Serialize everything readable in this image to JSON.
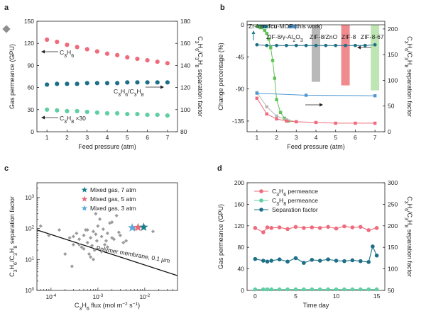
{
  "colors": {
    "pink": "#ef6b7b",
    "navy": "#1c6f86",
    "mint": "#5fcfa3",
    "green": "#5fc255",
    "blue": "#4f97d3",
    "gray": "#b9b9b9",
    "red_bar": "#ef8a8e",
    "lightgreen_bar": "#bde6b4",
    "teal_star": "#177e8c",
    "pink_star": "#ea6879",
    "blue_star": "#5ca7dc",
    "scatter_gray": "#9c9c9c"
  },
  "chart_data": [
    {
      "panel": "a",
      "type": "scatter",
      "xlabel": "Feed pressure (atm)",
      "ylabel_left": "Gas permeance (GPU)",
      "ylabel_right": "C3H6/C3H8 separation factor",
      "xlim": [
        0.5,
        7.5
      ],
      "ylim_left": [
        0,
        150
      ],
      "ylim_right": [
        80,
        180
      ],
      "xticks": [
        1,
        2,
        3,
        4,
        5,
        6,
        7
      ],
      "yticks_left": [
        0,
        30,
        60,
        90,
        120,
        150
      ],
      "yticks_right": [
        80,
        100,
        120,
        140,
        160,
        180
      ],
      "series": [
        {
          "axis": "left",
          "color": "pink",
          "x": [
            1,
            1.5,
            2,
            2.5,
            3,
            3.5,
            4,
            4.5,
            5,
            5.5,
            6,
            6.5,
            7
          ],
          "values": [
            125,
            122,
            118,
            115,
            112,
            109,
            106,
            104,
            101,
            99,
            97,
            95,
            93
          ]
        },
        {
          "axis": "left",
          "color": "navy",
          "x": [
            1,
            1.5,
            2,
            2.5,
            3,
            3.5,
            4,
            4.5,
            5,
            5.5,
            6,
            6.5,
            7
          ],
          "values": [
            64,
            65,
            65,
            65,
            66,
            66,
            66,
            66,
            67,
            67,
            67,
            67,
            67
          ]
        },
        {
          "axis": "left",
          "color": "mint",
          "x": [
            1,
            1.5,
            2,
            2.5,
            3,
            3.5,
            4,
            4.5,
            5,
            5.5,
            6,
            6.5,
            7
          ],
          "values": [
            30,
            29,
            28,
            28,
            27,
            26,
            25,
            25,
            24,
            24,
            23,
            23,
            22
          ]
        }
      ],
      "annotations": {
        "c3h6": "C3H6",
        "ratio": "C3H6/C3H8",
        "c3h8": "C3H8 ×30"
      }
    },
    {
      "panel": "b",
      "type": "bar",
      "xlabel": "Feed pressure (atm)",
      "ylabel_left": "Change percentage (%)",
      "ylabel_right": "C3H6/C3H8 separation factor",
      "xlim": [
        0.5,
        7.5
      ],
      "ylim_left": [
        -150,
        5
      ],
      "ylim_right": [
        0,
        215
      ],
      "xticks": [
        1,
        2,
        3,
        4,
        5,
        6,
        7
      ],
      "yticks_left": [
        0,
        -45,
        -90,
        -135
      ],
      "yticks_right": [
        0,
        50,
        100,
        150,
        200
      ],
      "bars": [
        {
          "name": "Zr-fum-fcu-MOF (this work)",
          "color": "teal_star",
          "x": 1.3,
          "value": -2
        },
        {
          "name": "ZIF-8/γ-Al2O3",
          "color": "blue",
          "x": 2.8,
          "value": -5
        },
        {
          "name": "ZIF-8/ZnO",
          "color": "gray",
          "x": 4.0,
          "value": -80
        },
        {
          "name": "ZIF-8",
          "color": "red_bar",
          "x": 5.5,
          "value": -85
        },
        {
          "name": "ZIF-8-67",
          "color": "lightgreen_bar",
          "x": 7.0,
          "value": -92
        }
      ],
      "series": [
        {
          "axis": "left",
          "color": "navy",
          "x": [
            1,
            1.5,
            2,
            2.5,
            3,
            3.5,
            4,
            4.5,
            5,
            5.5,
            6,
            6.5,
            7
          ],
          "values": [
            -28,
            -29,
            -29,
            -29,
            -29,
            -29,
            -29,
            -29,
            -29,
            -29,
            -29,
            -29,
            -28
          ]
        },
        {
          "axis": "left",
          "color": "green",
          "x": [
            1,
            1.2,
            1.4,
            1.5,
            1.6,
            1.7,
            1.8,
            1.9,
            2,
            2.2,
            2.4,
            2.6
          ],
          "values": [
            -2,
            -4,
            -8,
            -12,
            -20,
            -32,
            -50,
            -75,
            -105,
            -123,
            -131,
            -135
          ]
        },
        {
          "axis": "left",
          "color": "gray",
          "x": [
            1,
            1.5,
            2,
            2.5,
            3
          ],
          "values": [
            -95,
            -115,
            -128,
            -133,
            -136
          ]
        },
        {
          "axis": "left",
          "color": "pink",
          "x": [
            1,
            1.5,
            2,
            2.5,
            3,
            4,
            5,
            6,
            7
          ],
          "values": [
            -103,
            -125,
            -132,
            -135,
            -136,
            -137,
            -138,
            -138,
            -138
          ]
        },
        {
          "axis": "right",
          "color": "blue",
          "x": [
            1,
            3.5,
            7
          ],
          "values": [
            75,
            71,
            70
          ]
        }
      ]
    },
    {
      "panel": "c",
      "type": "scatter",
      "xlabel": "C3H6 flux (mol m−2 s−1)",
      "ylabel": "C3H6/C3H8 separation factor",
      "xscale": "log",
      "yscale": "log",
      "xlim": [
        5e-05,
        0.05
      ],
      "ylim": [
        1,
        3000
      ],
      "xticks": [
        "10−4",
        "10−3",
        "10−2"
      ],
      "yticks": [
        "100",
        "101",
        "102",
        "103"
      ],
      "literature": {
        "x": [
          6e-05,
          9e-05,
          0.00015,
          0.0002,
          0.00025,
          0.00028,
          0.0003,
          0.00035,
          0.0004,
          0.00045,
          0.0005,
          0.00055,
          0.0006,
          0.00065,
          0.0007,
          0.00075,
          0.0008,
          0.00085,
          0.0009,
          0.00095,
          0.001,
          0.0011,
          0.0012,
          0.0013,
          0.0014,
          0.0015,
          0.0016,
          0.0018,
          0.002,
          0.0022,
          0.0025,
          0.003,
          0.0035,
          0.0004,
          0.0006,
          0.0008,
          0.0012,
          0.0016,
          0.002,
          0.0028,
          0.004,
          0.006,
          0.0009,
          0.0005,
          0.0003,
          0.0007,
          0.015
        ],
        "y": [
          120,
          60,
          90,
          15,
          50,
          6,
          30,
          70,
          45,
          25,
          60,
          90,
          35,
          15,
          50,
          28,
          80,
          20,
          65,
          40,
          120,
          200,
          55,
          95,
          30,
          40,
          70,
          150,
          50,
          45,
          260,
          60,
          35,
          30,
          90,
          10,
          18,
          25,
          160,
          75,
          40,
          95,
          300,
          22,
          55,
          12,
          80
        ]
      },
      "mixed": [
        {
          "label": "Mixed gas, 7 atm",
          "color": "teal_star",
          "x": 0.0095,
          "y": 110
        },
        {
          "label": "Mixed gas, 5 atm",
          "color": "pink_star",
          "x": 0.0072,
          "y": 108
        },
        {
          "label": "Mixed gas, 3 atm",
          "color": "blue_star",
          "x": 0.0054,
          "y": 106
        }
      ],
      "boundary_label": "Polymer membrane, 0.1 µm",
      "boundary": {
        "x": [
          5e-05,
          0.05
        ],
        "y": [
          90,
          3
        ]
      }
    },
    {
      "panel": "d",
      "type": "line",
      "xlabel": "Time day",
      "ylabel_left": "Gas permeance (GPU)",
      "ylabel_right": "C3H6/C3H8 separation factor",
      "xlim": [
        -1,
        16
      ],
      "ylim_left": [
        0,
        200
      ],
      "ylim_right": [
        50,
        300
      ],
      "xticks": [
        0,
        5,
        10,
        15
      ],
      "yticks_left": [
        0,
        40,
        80,
        120,
        160,
        200
      ],
      "yticks_right": [
        50,
        100,
        150,
        200,
        250,
        300
      ],
      "legend": [
        "C3H6 permeance",
        "C3H8 permeance",
        "Separation factor"
      ],
      "series": [
        {
          "name": "C3H6 permeance",
          "axis": "left",
          "color": "pink",
          "x": [
            0,
            1,
            1.5,
            2,
            3,
            4,
            5,
            6,
            7,
            8,
            9,
            10,
            11,
            12,
            13,
            14,
            15
          ],
          "values": [
            116,
            108,
            117,
            116,
            117,
            114,
            118,
            116,
            117,
            116,
            118,
            115,
            119,
            117,
            118,
            112,
            116
          ]
        },
        {
          "name": "C3H8 permeance",
          "axis": "left",
          "color": "mint",
          "x": [
            0,
            1,
            1.5,
            2,
            3,
            4,
            5,
            6,
            7,
            8,
            9,
            10,
            11,
            12,
            13,
            14,
            15
          ],
          "values": [
            2,
            2,
            2,
            2,
            2,
            2,
            2,
            2,
            2,
            2,
            2,
            2,
            2,
            2,
            2,
            2,
            2
          ]
        },
        {
          "name": "Separation factor",
          "axis": "right",
          "color": "navy",
          "x": [
            0,
            1,
            1.5,
            2,
            3,
            4,
            5,
            6,
            7,
            8,
            9,
            10,
            11,
            12,
            13,
            14,
            14.5,
            15
          ],
          "values": [
            123,
            119,
            117,
            119,
            122,
            117,
            125,
            114,
            121,
            119,
            122,
            119,
            118,
            120,
            118,
            116,
            152,
            131
          ]
        }
      ]
    }
  ]
}
